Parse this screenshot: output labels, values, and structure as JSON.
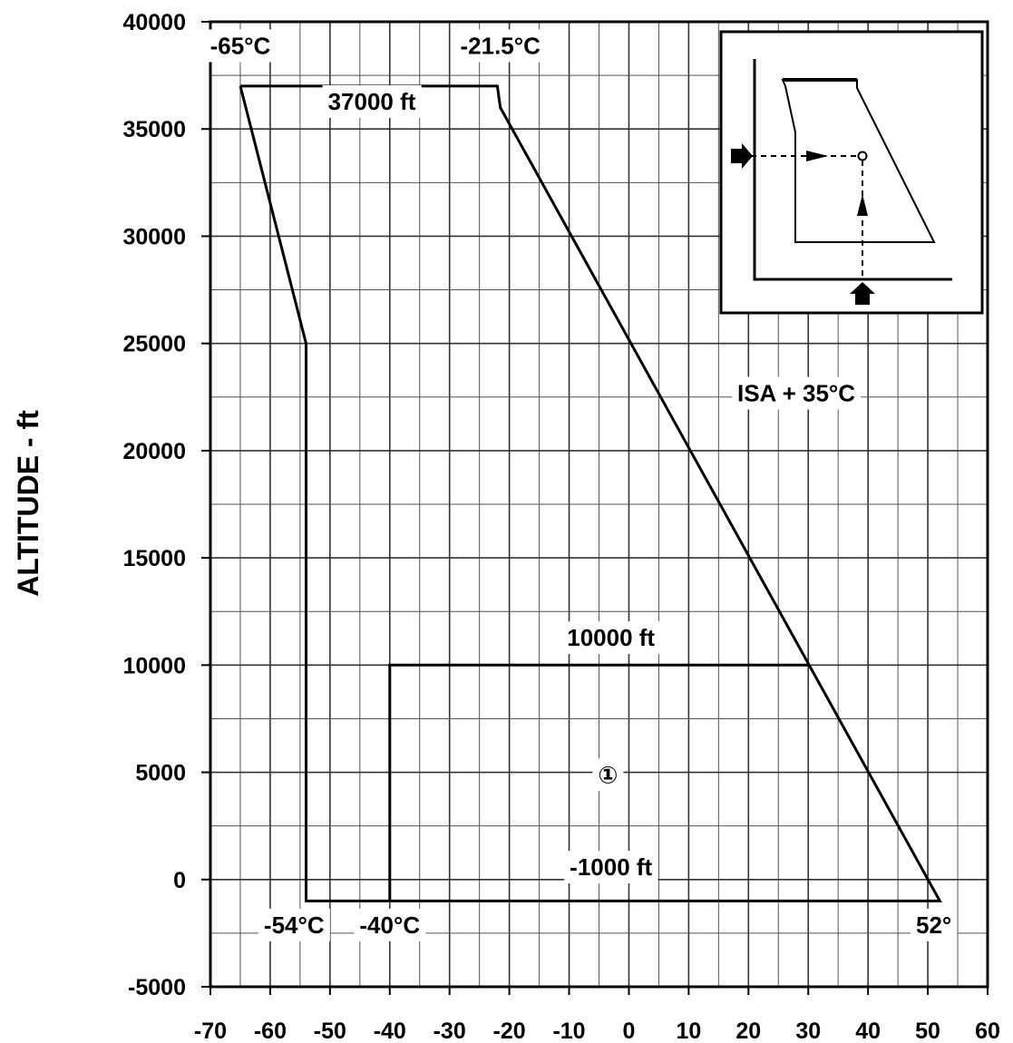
{
  "chart_data": {
    "type": "line",
    "title": "",
    "xlabel": "",
    "ylabel": "ALTITUDE - ft",
    "xlim": [
      -70,
      60
    ],
    "ylim": [
      -5000,
      40000
    ],
    "x_ticks": [
      "-70",
      "-60",
      "-50",
      "-40",
      "-30",
      "-20",
      "-10",
      "0",
      "10",
      "20",
      "30",
      "40",
      "50",
      "60"
    ],
    "y_ticks": [
      "-5000",
      "0",
      "5000",
      "10000",
      "15000",
      "20000",
      "25000",
      "30000",
      "35000",
      "40000"
    ],
    "x_tick_values": [
      -70,
      -60,
      -50,
      -40,
      -30,
      -20,
      -10,
      0,
      10,
      20,
      30,
      40,
      50,
      60
    ],
    "y_tick_values": [
      -5000,
      0,
      5000,
      10000,
      15000,
      20000,
      25000,
      30000,
      35000,
      40000
    ],
    "grid": true,
    "series": [
      {
        "points": [
          [
            -65,
            37000
          ],
          [
            -22,
            37000
          ],
          [
            -21.5,
            36000
          ],
          [
            52,
            -1000
          ],
          [
            -54,
            -1000
          ],
          [
            -54,
            25000
          ],
          [
            -65,
            37000
          ]
        ]
      },
      {
        "points": [
          [
            -40,
            -1000
          ],
          [
            -40,
            10000
          ],
          [
            30,
            10000
          ]
        ]
      }
    ],
    "annotations": [
      {
        "text": "-65°C",
        "x": -65,
        "y": 38500
      },
      {
        "text": "-21.5°C",
        "x": -21.5,
        "y": 38500
      },
      {
        "text": "37000 ft",
        "x": -43,
        "y": 35900
      },
      {
        "text": "ISA + 35°C",
        "x": 28,
        "y": 22300
      },
      {
        "text": "10000 ft",
        "x": -3,
        "y": 10900
      },
      {
        "text": "①",
        "x": -3.5,
        "y": 4500
      },
      {
        "text": "-1000 ft",
        "x": -3,
        "y": 200
      },
      {
        "text": "-54°C",
        "x": -56,
        "y": -2500
      },
      {
        "text": "-40°C",
        "x": -40,
        "y": -2500
      },
      {
        "text": "52°",
        "x": 51,
        "y": -2500
      }
    ]
  }
}
